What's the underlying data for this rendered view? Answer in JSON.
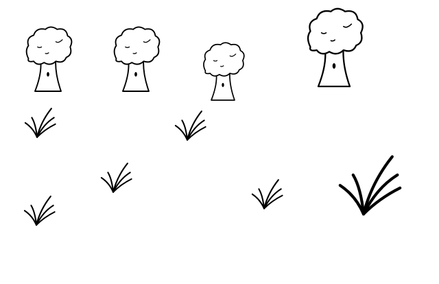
{
  "scene": {
    "background_color": "#ffffff",
    "ink_color": "#000000",
    "trees": [
      {
        "id": "tree-1",
        "icon": "tree-icon"
      },
      {
        "id": "tree-2",
        "icon": "tree-icon"
      },
      {
        "id": "tree-3",
        "icon": "tree-icon"
      },
      {
        "id": "tree-4",
        "icon": "tree-icon"
      }
    ],
    "grass_tufts": [
      {
        "id": "grass-1",
        "icon": "grass-icon"
      },
      {
        "id": "grass-2",
        "icon": "grass-icon"
      },
      {
        "id": "grass-3",
        "icon": "grass-icon"
      },
      {
        "id": "grass-4",
        "icon": "grass-icon"
      },
      {
        "id": "grass-5",
        "icon": "grass-icon"
      },
      {
        "id": "grass-6",
        "icon": "grass-icon"
      }
    ]
  }
}
